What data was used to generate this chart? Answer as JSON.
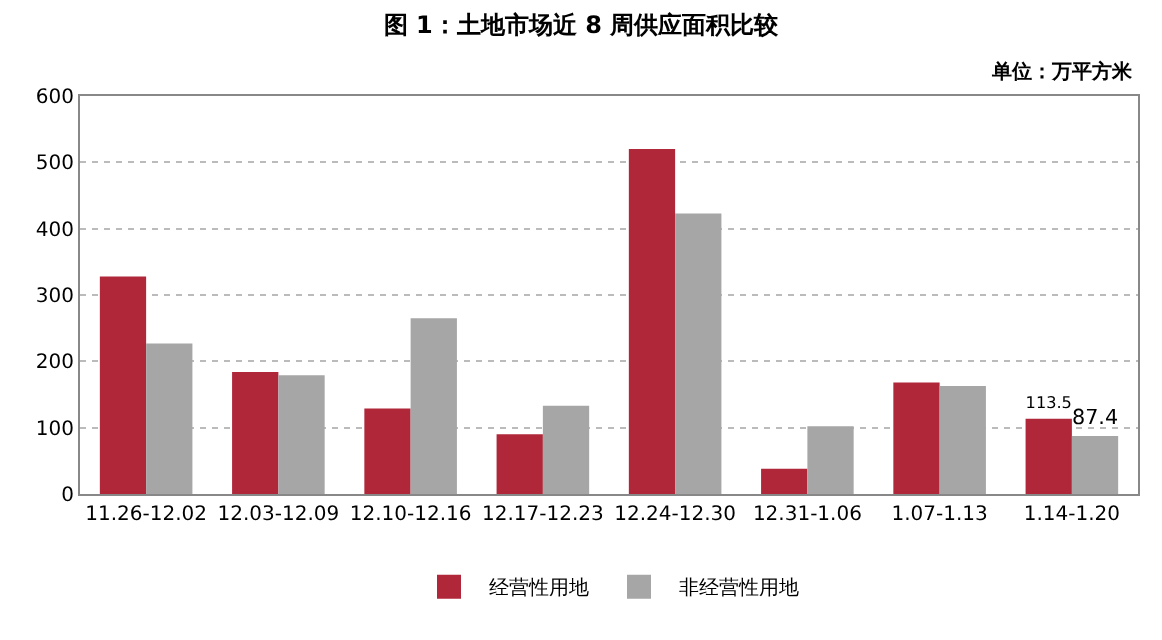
{
  "chart_data": {
    "type": "bar",
    "title": "图 1：土地市场近 8 周供应面积比较",
    "annotations": [
      "单位：万平方米"
    ],
    "categories": [
      "11.26-12.02",
      "12.03-12.09",
      "12.10-12.16",
      "12.17-12.23",
      "12.24-12.30",
      "12.31-1.06",
      "1.07-1.13",
      "1.14-1.20"
    ],
    "series": [
      {
        "name": "经营性用地",
        "color": "#b0273a",
        "values": [
          328,
          184,
          129,
          90,
          520,
          38,
          168,
          113.5
        ],
        "value_labels": [
          null,
          null,
          null,
          null,
          null,
          null,
          null,
          "113.5"
        ]
      },
      {
        "name": "非经营性用地",
        "color": "#a6a6a6",
        "values": [
          227,
          179,
          265,
          133,
          423,
          102,
          163,
          87.4
        ],
        "value_labels": [
          null,
          null,
          null,
          null,
          null,
          null,
          null,
          "87.4"
        ]
      }
    ],
    "ylim": [
      0,
      600
    ],
    "yticks": [
      0,
      100,
      200,
      300,
      400,
      500,
      600
    ],
    "grid": "y",
    "legend": "bottom"
  }
}
